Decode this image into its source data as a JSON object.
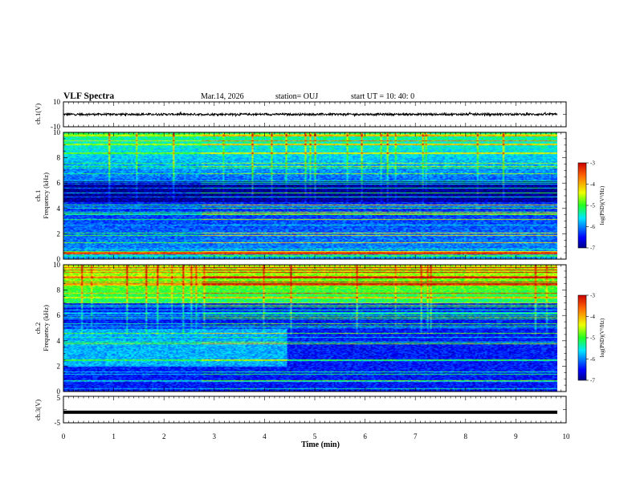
{
  "header": {
    "title": "VLF Spectra",
    "date": "Mar.14, 2026",
    "station": "station= OUJ",
    "start": "start  UT =   10: 40: 0"
  },
  "chart_data": [
    {
      "type": "line",
      "id": "ch1-waveform",
      "ylabel": "ch.1(V)",
      "ylim": [
        -10,
        10
      ],
      "ytick_labels": [
        "10",
        "-10"
      ],
      "series": [
        {
          "name": "ch.1 waveform",
          "mean": 0,
          "amplitude": 0.8
        }
      ]
    },
    {
      "type": "heatmap",
      "id": "ch1-spectrogram",
      "ylabel": "ch.1",
      "ylabel2": "Frequency (kHz)",
      "ylim": [
        0,
        10
      ],
      "yticks": [
        0,
        2,
        4,
        6,
        8,
        10
      ],
      "colorbar": {
        "label": "log(PSD)(V²/Hz)",
        "range": [
          -7,
          -3
        ],
        "ticks": [
          "-3",
          "-4",
          "-5",
          "-6",
          "-7"
        ]
      }
    },
    {
      "type": "heatmap",
      "id": "ch2-spectrogram",
      "ylabel": "ch.2",
      "ylabel2": "Frequency (kHz)",
      "ylim": [
        0,
        10
      ],
      "yticks": [
        0,
        2,
        4,
        6,
        8,
        10
      ],
      "colorbar": {
        "label": "log(PSD)(V²/Hz)",
        "range": [
          -7,
          -3
        ],
        "ticks": [
          "-3",
          "-4",
          "-5",
          "-6",
          "-7"
        ]
      }
    },
    {
      "type": "line",
      "id": "ch3-waveform",
      "ylabel": "ch.3(V)",
      "ylim": [
        -5,
        5
      ],
      "ytick_labels": [
        "5",
        "-5"
      ],
      "series": [
        {
          "name": "ch.3 waveform",
          "mean": -1,
          "amplitude": 0.1
        }
      ]
    }
  ],
  "xaxis": {
    "label": "Time  (min)",
    "range": [
      0,
      10
    ],
    "data_end": 9.83,
    "ticks": [
      "0",
      "1",
      "2",
      "3",
      "4",
      "5",
      "6",
      "7",
      "8",
      "9",
      "10"
    ]
  },
  "colors": {
    "line": "#000000",
    "background": "#ffffff"
  }
}
